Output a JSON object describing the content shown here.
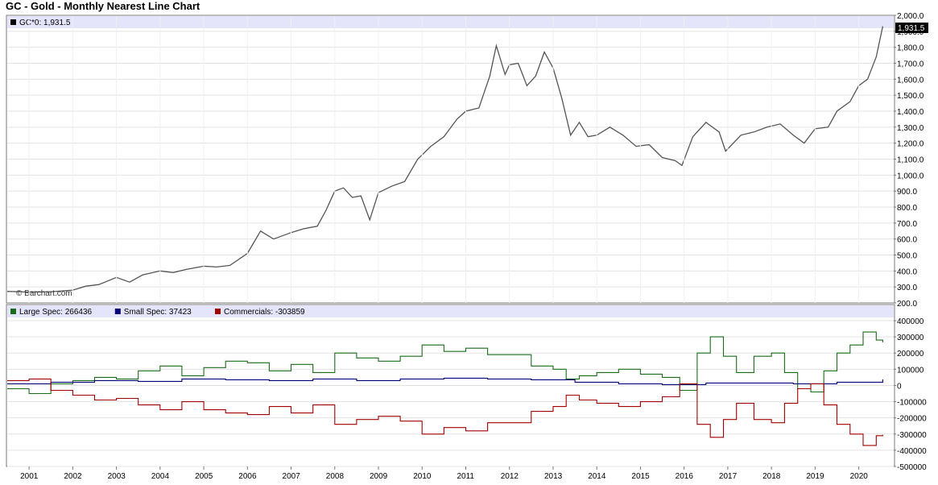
{
  "title": "GC - Gold - Monthly Nearest Line Chart",
  "watermark": "© Barchart.com",
  "chart_data": [
    {
      "type": "line",
      "legend": "GC*0: 1,931.5",
      "last_value_label": "1,931.5",
      "color": "#555555",
      "ylim": [
        200,
        2000
      ],
      "yticks": [
        "2,000.0",
        "1,900.0",
        "1,800.0",
        "1,700.0",
        "1,600.0",
        "1,500.0",
        "1,400.0",
        "1,300.0",
        "1,200.0",
        "1,100.0",
        "1,000.0",
        "900.0",
        "800.0",
        "700.0",
        "600.0",
        "500.0",
        "400.0",
        "300.0",
        "200.0"
      ],
      "xticks": [
        "2001",
        "2002",
        "2003",
        "2004",
        "2005",
        "2006",
        "2007",
        "2008",
        "2009",
        "2010",
        "2011",
        "2012",
        "2013",
        "2014",
        "2015",
        "2016",
        "2017",
        "2018",
        "2019",
        "2020"
      ],
      "x": [
        2000.5,
        2001.0,
        2001.5,
        2002.0,
        2002.3,
        2002.6,
        2003.0,
        2003.3,
        2003.6,
        2004.0,
        2004.3,
        2004.6,
        2005.0,
        2005.3,
        2005.6,
        2006.0,
        2006.3,
        2006.6,
        2007.0,
        2007.3,
        2007.6,
        2007.8,
        2008.0,
        2008.2,
        2008.4,
        2008.6,
        2008.8,
        2009.0,
        2009.3,
        2009.6,
        2009.9,
        2010.2,
        2010.5,
        2010.8,
        2011.0,
        2011.3,
        2011.55,
        2011.7,
        2011.9,
        2012.0,
        2012.2,
        2012.4,
        2012.6,
        2012.8,
        2013.0,
        2013.2,
        2013.4,
        2013.6,
        2013.8,
        2014.0,
        2014.3,
        2014.6,
        2014.9,
        2015.2,
        2015.5,
        2015.8,
        2015.95,
        2016.2,
        2016.5,
        2016.8,
        2016.95,
        2017.3,
        2017.6,
        2017.9,
        2018.2,
        2018.5,
        2018.75,
        2019.0,
        2019.3,
        2019.5,
        2019.8,
        2020.0,
        2020.2,
        2020.4,
        2020.55
      ],
      "y": [
        272,
        268,
        270,
        280,
        305,
        315,
        360,
        330,
        375,
        400,
        390,
        410,
        430,
        425,
        435,
        510,
        650,
        600,
        640,
        665,
        680,
        780,
        900,
        920,
        860,
        870,
        720,
        890,
        930,
        960,
        1100,
        1180,
        1240,
        1350,
        1400,
        1420,
        1620,
        1810,
        1630,
        1690,
        1700,
        1560,
        1620,
        1770,
        1670,
        1480,
        1250,
        1330,
        1240,
        1250,
        1300,
        1250,
        1180,
        1190,
        1110,
        1090,
        1060,
        1240,
        1330,
        1270,
        1150,
        1250,
        1270,
        1300,
        1320,
        1250,
        1200,
        1290,
        1300,
        1400,
        1460,
        1560,
        1600,
        1740,
        1931.5
      ]
    },
    {
      "type": "line",
      "ylim": [
        -500000,
        400000
      ],
      "yticks": [
        "400000",
        "300000",
        "200000",
        "100000",
        "0",
        "-100000",
        "-200000",
        "-300000",
        "-400000",
        "-500000"
      ],
      "series": [
        {
          "name": "Large Spec",
          "legend": "Large Spec: 266436",
          "color": "#1a6b1a",
          "x": [
            2000.5,
            2001.0,
            2001.5,
            2002.0,
            2002.5,
            2003.0,
            2003.5,
            2004.0,
            2004.5,
            2005.0,
            2005.5,
            2006.0,
            2006.5,
            2007.0,
            2007.5,
            2008.0,
            2008.5,
            2009.0,
            2009.5,
            2010.0,
            2010.5,
            2011.0,
            2011.5,
            2012.0,
            2012.5,
            2013.0,
            2013.3,
            2013.6,
            2014.0,
            2014.5,
            2015.0,
            2015.5,
            2015.9,
            2016.3,
            2016.6,
            2016.9,
            2017.2,
            2017.6,
            2018.0,
            2018.3,
            2018.6,
            2018.9,
            2019.2,
            2019.5,
            2019.8,
            2020.1,
            2020.4,
            2020.55
          ],
          "y": [
            -20000,
            -50000,
            10000,
            30000,
            50000,
            40000,
            90000,
            120000,
            60000,
            110000,
            150000,
            140000,
            90000,
            130000,
            80000,
            200000,
            170000,
            150000,
            180000,
            250000,
            210000,
            230000,
            190000,
            190000,
            120000,
            100000,
            40000,
            60000,
            80000,
            100000,
            70000,
            50000,
            -30000,
            200000,
            300000,
            180000,
            80000,
            180000,
            200000,
            80000,
            -20000,
            -40000,
            90000,
            200000,
            250000,
            330000,
            280000,
            266436
          ]
        },
        {
          "name": "Small Spec",
          "legend": "Small Spec: 37423",
          "color": "#00007a",
          "x": [
            2000.5,
            2001.5,
            2002.5,
            2003.5,
            2004.5,
            2005.5,
            2006.5,
            2007.5,
            2008.5,
            2009.5,
            2010.5,
            2011.5,
            2012.5,
            2013.5,
            2014.5,
            2015.5,
            2016.5,
            2017.5,
            2018.5,
            2019.5,
            2020.55
          ],
          "y": [
            10000,
            20000,
            30000,
            25000,
            40000,
            35000,
            30000,
            40000,
            30000,
            40000,
            45000,
            40000,
            35000,
            20000,
            10000,
            5000,
            15000,
            15000,
            10000,
            20000,
            37423
          ]
        },
        {
          "name": "Commercials",
          "legend": "Commercials: -303859",
          "color": "#a00000",
          "x": [
            2000.5,
            2001.0,
            2001.5,
            2002.0,
            2002.5,
            2003.0,
            2003.5,
            2004.0,
            2004.5,
            2005.0,
            2005.5,
            2006.0,
            2006.5,
            2007.0,
            2007.5,
            2008.0,
            2008.5,
            2009.0,
            2009.5,
            2010.0,
            2010.5,
            2011.0,
            2011.5,
            2012.0,
            2012.5,
            2013.0,
            2013.3,
            2013.6,
            2014.0,
            2014.5,
            2015.0,
            2015.5,
            2015.9,
            2016.3,
            2016.6,
            2016.9,
            2017.2,
            2017.6,
            2018.0,
            2018.3,
            2018.6,
            2018.9,
            2019.2,
            2019.5,
            2019.8,
            2020.1,
            2020.4,
            2020.55
          ],
          "y": [
            30000,
            40000,
            -30000,
            -60000,
            -90000,
            -80000,
            -120000,
            -150000,
            -100000,
            -150000,
            -170000,
            -180000,
            -130000,
            -170000,
            -120000,
            -240000,
            -210000,
            -190000,
            -220000,
            -300000,
            -260000,
            -280000,
            -230000,
            -230000,
            -160000,
            -130000,
            -60000,
            -90000,
            -110000,
            -130000,
            -100000,
            -70000,
            10000,
            -240000,
            -320000,
            -210000,
            -110000,
            -210000,
            -230000,
            -110000,
            -20000,
            10000,
            -120000,
            -240000,
            -300000,
            -370000,
            -310000,
            -303859
          ]
        }
      ]
    }
  ]
}
